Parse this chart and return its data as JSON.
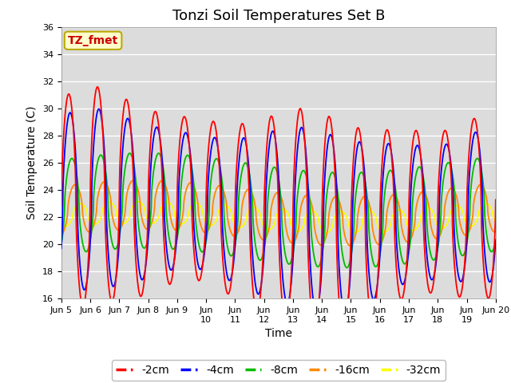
{
  "title": "Tonzi Soil Temperatures Set B",
  "xlabel": "Time",
  "ylabel": "Soil Temperature (C)",
  "ylim": [
    16,
    36
  ],
  "colors": {
    "-2cm": "#ff0000",
    "-4cm": "#0000ff",
    "-8cm": "#00bb00",
    "-16cm": "#ff8800",
    "-32cm": "#ffff00"
  },
  "legend_label": "TZ_fmet",
  "background_color": "#dcdcdc",
  "title_fontsize": 13,
  "axis_fontsize": 10,
  "tick_fontsize": 8,
  "legend_fontsize": 10
}
